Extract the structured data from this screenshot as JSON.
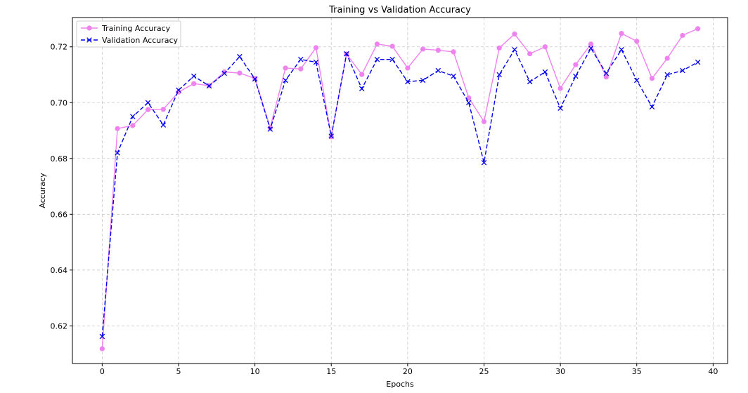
{
  "chart_data": {
    "type": "line",
    "title": "Training vs Validation Accuracy",
    "xlabel": "Epochs",
    "ylabel": "Accuracy",
    "xlim": [
      -1.95,
      40.95
    ],
    "ylim": [
      0.6065,
      0.7305
    ],
    "xticks": [
      0,
      5,
      10,
      15,
      20,
      25,
      30,
      35,
      40
    ],
    "yticks": [
      0.62,
      0.64,
      0.66,
      0.68,
      0.7,
      0.72
    ],
    "grid": true,
    "legend_position": "upper-left",
    "x": [
      0,
      1,
      2,
      3,
      4,
      5,
      6,
      7,
      8,
      9,
      10,
      11,
      12,
      13,
      14,
      15,
      16,
      17,
      18,
      19,
      20,
      21,
      22,
      23,
      24,
      25,
      26,
      27,
      28,
      29,
      30,
      31,
      32,
      33,
      34,
      35,
      36,
      37,
      38,
      39
    ],
    "series": [
      {
        "name": "Training Accuracy",
        "color": "#ee82ee",
        "linestyle": "solid",
        "marker": "circle",
        "values": [
          0.6118,
          0.6907,
          0.6918,
          0.6975,
          0.6976,
          0.7038,
          0.7068,
          0.7061,
          0.711,
          0.7106,
          0.7087,
          0.691,
          0.7124,
          0.7121,
          0.7197,
          0.6878,
          0.7174,
          0.7101,
          0.721,
          0.7202,
          0.7124,
          0.7192,
          0.7188,
          0.7182,
          0.7017,
          0.6932,
          0.7196,
          0.7246,
          0.7175,
          0.72,
          0.7051,
          0.7136,
          0.721,
          0.7092,
          0.7248,
          0.722,
          0.7087,
          0.7159,
          0.7241,
          0.7265
        ]
      },
      {
        "name": "Validation Accuracy",
        "color": "#0000ee",
        "linestyle": "dashed",
        "marker": "x",
        "values": [
          0.6162,
          0.682,
          0.695,
          0.7,
          0.692,
          0.7045,
          0.7095,
          0.706,
          0.7105,
          0.7165,
          0.7085,
          0.6905,
          0.708,
          0.7155,
          0.7145,
          0.688,
          0.7175,
          0.705,
          0.7155,
          0.7155,
          0.7075,
          0.708,
          0.7115,
          0.7095,
          0.7,
          0.6785,
          0.71,
          0.719,
          0.7075,
          0.711,
          0.698,
          0.7095,
          0.7195,
          0.7105,
          0.719,
          0.708,
          0.6985,
          0.71,
          0.7115,
          0.7145
        ]
      }
    ]
  }
}
